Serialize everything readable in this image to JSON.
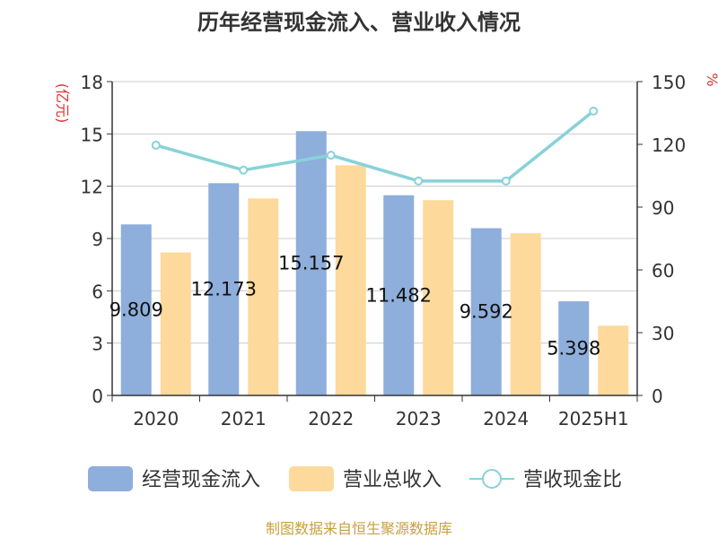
{
  "chart_data": {
    "type": "bar",
    "title": "历年经营现金流入、营业收入情况",
    "ylabel_left": "(亿元)",
    "ylabel_right": "%",
    "categories": [
      "2020",
      "2021",
      "2022",
      "2023",
      "2024",
      "2025H1"
    ],
    "ylim_left": [
      0,
      18
    ],
    "yticks_left": [
      "0",
      "3",
      "6",
      "9",
      "12",
      "15",
      "18"
    ],
    "ylim_right": [
      0,
      150
    ],
    "yticks_right": [
      "0",
      "30",
      "60",
      "90",
      "120",
      "150"
    ],
    "grid": true,
    "legend_position": "bottom",
    "series": [
      {
        "name": "经营现金流入",
        "type": "bar",
        "axis": "left",
        "color": "#8eaedb",
        "values": [
          9.809,
          12.173,
          15.157,
          11.482,
          9.592,
          5.398
        ],
        "labels": [
          "9.809",
          "12.173",
          "15.157",
          "11.482",
          "9.592",
          "5.398"
        ]
      },
      {
        "name": "营业总收入",
        "type": "bar",
        "axis": "left",
        "color": "#fdd99b",
        "values": [
          8.2,
          11.3,
          13.2,
          11.2,
          9.3,
          4.0
        ]
      },
      {
        "name": "营收现金比",
        "type": "line",
        "axis": "right",
        "color": "#88d2d8",
        "values": [
          119.6,
          107.7,
          114.8,
          102.5,
          102.5,
          135.9
        ]
      }
    ]
  },
  "source": "制图数据来自恒生聚源数据库"
}
